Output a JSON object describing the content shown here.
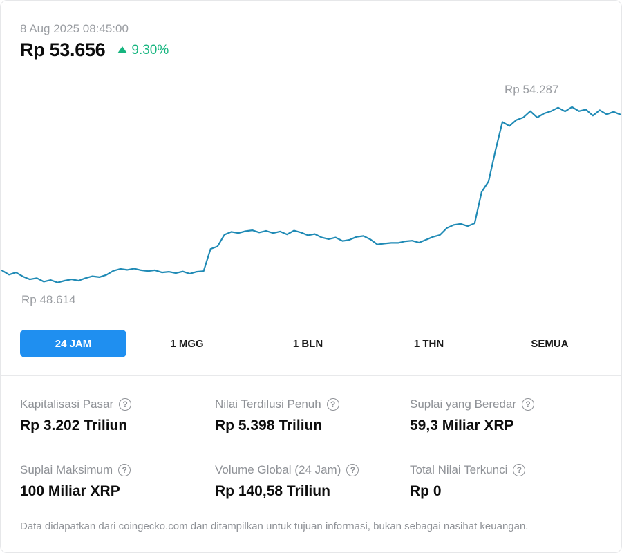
{
  "header": {
    "timestamp": "8 Aug 2025 08:45:00",
    "price": "Rp 53.656",
    "change_pct": "9.30%",
    "change_direction": "up"
  },
  "colors": {
    "line": "#1f8ab5",
    "up": "#16b57f",
    "active_tab": "#1f8ff0"
  },
  "chart_data": {
    "type": "line",
    "high_label": "Rp 54.287",
    "low_label": "Rp 48.614",
    "y_min": 48614,
    "y_max": 54287,
    "series": [
      {
        "values": [
          49000,
          48870,
          48940,
          48810,
          48720,
          48760,
          48650,
          48700,
          48620,
          48680,
          48720,
          48680,
          48760,
          48820,
          48790,
          48860,
          48990,
          49050,
          49020,
          49060,
          49010,
          48980,
          49010,
          48940,
          48960,
          48920,
          48970,
          48900,
          48960,
          48980,
          49680,
          49760,
          50130,
          50220,
          50180,
          50240,
          50270,
          50200,
          50250,
          50180,
          50230,
          50140,
          50260,
          50200,
          50110,
          50150,
          50040,
          49990,
          50040,
          49930,
          49970,
          50060,
          50090,
          49980,
          49820,
          49850,
          49870,
          49870,
          49920,
          49940,
          49880,
          49970,
          50060,
          50120,
          50340,
          50440,
          50470,
          50400,
          50490,
          51480,
          51810,
          52800,
          53690,
          53560,
          53750,
          53830,
          54030,
          53830,
          53960,
          54030,
          54140,
          54020,
          54160,
          54030,
          54080,
          53890,
          54060,
          53930,
          54010,
          53920
        ]
      }
    ]
  },
  "tabs": [
    "24 JAM",
    "1 MGG",
    "1 BLN",
    "1 THN",
    "SEMUA"
  ],
  "active_tab_index": 0,
  "stats": [
    {
      "label": "Kapitalisasi Pasar",
      "value": "Rp 3.202 Triliun"
    },
    {
      "label": "Nilai Terdilusi Penuh",
      "value": "Rp 5.398 Triliun"
    },
    {
      "label": "Suplai yang Beredar",
      "value": "59,3 Miliar XRP"
    },
    {
      "label": "Suplai Maksimum",
      "value": "100 Miliar XRP"
    },
    {
      "label": "Volume Global (24 Jam)",
      "value": "Rp 140,58 Triliun"
    },
    {
      "label": "Total Nilai Terkunci",
      "value": "Rp 0"
    }
  ],
  "help_icon_glyph": "?",
  "footer": "Data didapatkan dari coingecko.com dan ditampilkan untuk tujuan informasi, bukan sebagai nasihat keuangan."
}
